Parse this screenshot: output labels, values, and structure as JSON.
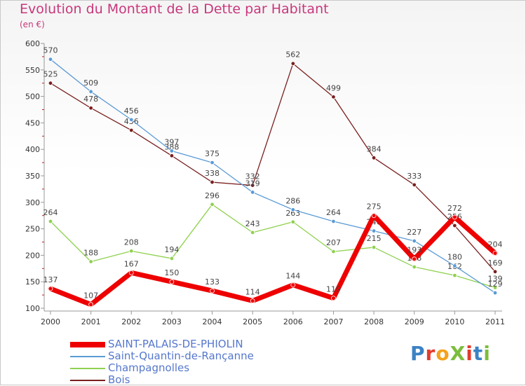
{
  "title": "Evolution du Montant de la Dette par Habitant",
  "subtitle": "(en €)",
  "brand": {
    "text": "ProXiti",
    "letter_colors": [
      "#3b82c4",
      "#e23b2c",
      "#f4a21b",
      "#7cbd3c",
      "#e23b2c",
      "#3b82c4",
      "#7cbd3c"
    ]
  },
  "chart_data": {
    "type": "line",
    "x": [
      "2000",
      "2001",
      "2002",
      "2003",
      "2004",
      "2005",
      "2006",
      "2007",
      "2008",
      "2009",
      "2010",
      "2011"
    ],
    "ylim": [
      100,
      600
    ],
    "yticks": [
      100,
      150,
      200,
      250,
      300,
      350,
      400,
      450,
      500,
      550,
      600
    ],
    "grid": false,
    "legend_position": "bottom-left",
    "series": [
      {
        "name": "Bois",
        "color": "#7a1f1f",
        "width": 1.3,
        "values": [
          525,
          478,
          436,
          388,
          338,
          332,
          562,
          499,
          384,
          333,
          256,
          169
        ]
      },
      {
        "name": "Champagnolles",
        "color": "#8fd14f",
        "width": 1.3,
        "values": [
          264,
          188,
          208,
          194,
          296,
          243,
          263,
          207,
          215,
          178,
          162,
          139
        ]
      },
      {
        "name": "Saint-Quantin-de-Rançanne",
        "color": "#5b9bd5",
        "width": 1.3,
        "values": [
          570,
          509,
          456,
          397,
          375,
          319,
          286,
          264,
          246,
          227,
          180,
          129
        ]
      },
      {
        "name": "SAINT-PALAIS-DE-PHIOLIN",
        "color": "#ee0000",
        "width": 7,
        "values": [
          137,
          107,
          167,
          150,
          133,
          114,
          144,
          119,
          275,
          193,
          272,
          204
        ]
      }
    ],
    "legend_order": [
      "SAINT-PALAIS-DE-PHIOLIN",
      "Saint-Quantin-de-Rançanne",
      "Champagnolles",
      "Bois"
    ]
  }
}
